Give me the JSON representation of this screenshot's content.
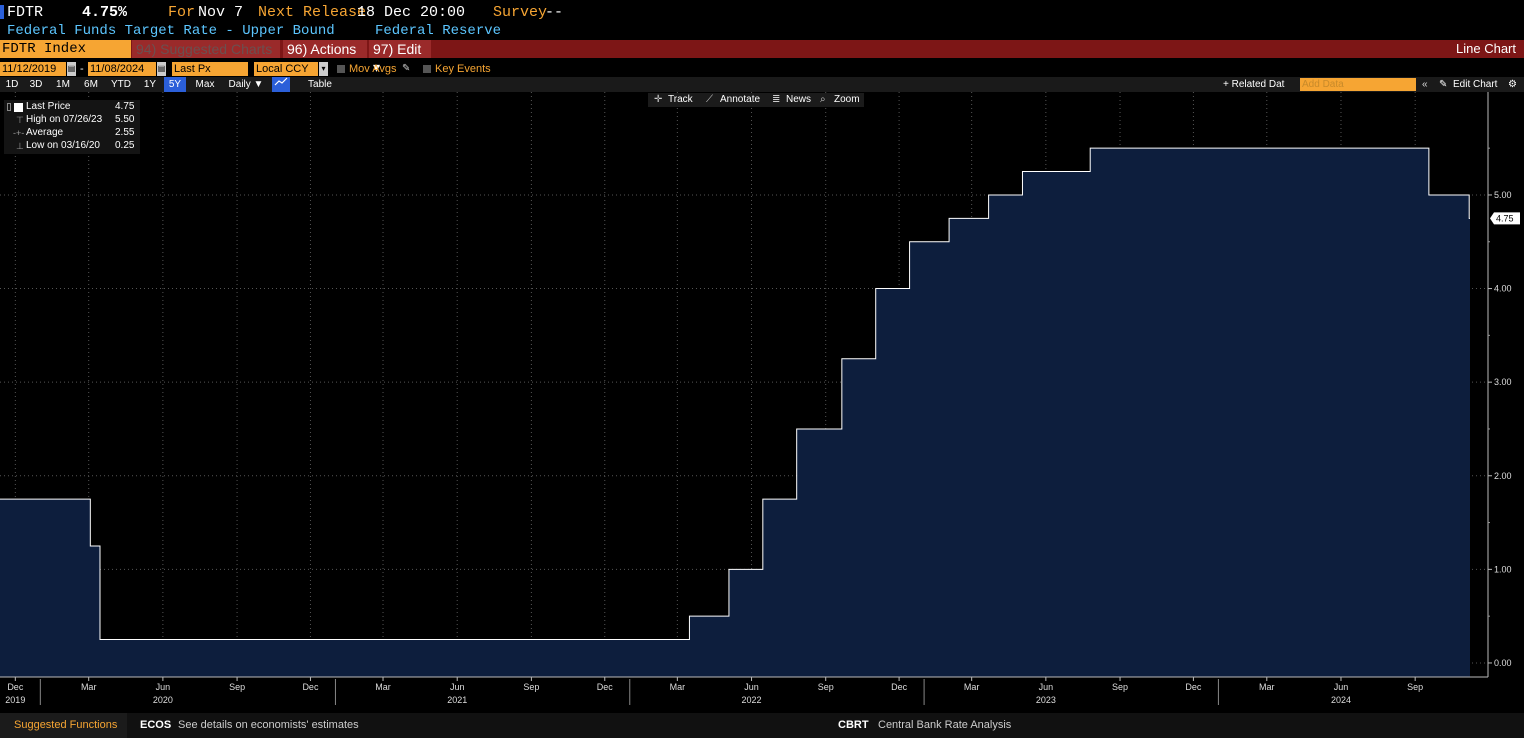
{
  "header": {
    "ticker": "FDTR",
    "value": "4.75%",
    "for_label": "For",
    "for_date": "Nov 7",
    "next_release_label": "Next Release",
    "next_release": "18 Dec 20:00",
    "survey_label": "Survey",
    "survey_value": "--",
    "name": "Federal Funds Target Rate - Upper Bound",
    "source": "Federal Reserve"
  },
  "toolbar": {
    "index": "FDTR Index",
    "suggested": "94) Suggested Charts",
    "actions": "96) Actions",
    "edit": "97) Edit",
    "chart_type": "Line Chart",
    "dropdown_glyph": "▾"
  },
  "controls": {
    "start_date": "11/12/2019",
    "sep": "-",
    "end_date": "11/08/2024",
    "field": "Last Px",
    "currency": "Local CCY",
    "mov_avgs": "Mov Avgs",
    "key_events": "Key Events"
  },
  "range": {
    "buttons": [
      "1D",
      "3D",
      "1M",
      "6M",
      "YTD",
      "1Y",
      "5Y",
      "Max"
    ],
    "selected": "5Y",
    "period": "Daily",
    "table": "Table",
    "related": "+ Related Dat",
    "add_data": "Add Data",
    "edit_chart": "Edit Chart"
  },
  "chart_tools": {
    "track": "Track",
    "annotate": "Annotate",
    "news": "News",
    "zoom": "Zoom"
  },
  "legend": {
    "last_label": "Last Price",
    "last_value": "4.75",
    "high_label": "High on 07/26/23",
    "high_value": "5.50",
    "avg_label": "Average",
    "avg_value": "2.55",
    "low_label": "Low on 03/16/20",
    "low_value": "0.25"
  },
  "footer": {
    "suggested": "Suggested Functions",
    "ecos_code": "ECOS",
    "ecos_desc": "See details on economists' estimates",
    "cbrt_code": "CBRT",
    "cbrt_desc": "Central Bank Rate Analysis"
  },
  "colors": {
    "accent_orange": "#f6a533",
    "title_blue": "#5cc6ff",
    "area_fill": "#0d1e3d",
    "line": "#ffffff",
    "red_bar": "#7d1616"
  },
  "chart_data": {
    "type": "area",
    "title": "",
    "xlabel": "",
    "ylabel": "",
    "x_range": [
      "2019-11-12",
      "2024-11-08"
    ],
    "ylim": [
      -0.15,
      6.1
    ],
    "y_ticks": [
      "0.00",
      "1.00",
      "2.00",
      "3.00",
      "4.00",
      "5.00"
    ],
    "last_value_label": "4.75",
    "step_points": [
      {
        "x": "2019-11-12",
        "y": 1.75
      },
      {
        "x": "2020-03-03",
        "y": 1.25
      },
      {
        "x": "2020-03-15",
        "y": 0.25
      },
      {
        "x": "2022-03-16",
        "y": 0.5
      },
      {
        "x": "2022-05-04",
        "y": 1.0
      },
      {
        "x": "2022-06-15",
        "y": 1.75
      },
      {
        "x": "2022-07-27",
        "y": 2.5
      },
      {
        "x": "2022-09-21",
        "y": 3.25
      },
      {
        "x": "2022-11-02",
        "y": 4.0
      },
      {
        "x": "2022-12-14",
        "y": 4.5
      },
      {
        "x": "2023-02-01",
        "y": 4.75
      },
      {
        "x": "2023-03-22",
        "y": 5.0
      },
      {
        "x": "2023-05-03",
        "y": 5.25
      },
      {
        "x": "2023-07-26",
        "y": 5.5
      },
      {
        "x": "2024-09-18",
        "y": 5.0
      },
      {
        "x": "2024-11-07",
        "y": 4.75
      },
      {
        "x": "2024-11-08",
        "y": 4.75
      }
    ],
    "x_month_ticks": [
      {
        "date": "2019-12-01",
        "label": "Dec"
      },
      {
        "date": "2020-03-01",
        "label": "Mar"
      },
      {
        "date": "2020-06-01",
        "label": "Jun"
      },
      {
        "date": "2020-09-01",
        "label": "Sep"
      },
      {
        "date": "2020-12-01",
        "label": "Dec"
      },
      {
        "date": "2021-03-01",
        "label": "Mar"
      },
      {
        "date": "2021-06-01",
        "label": "Jun"
      },
      {
        "date": "2021-09-01",
        "label": "Sep"
      },
      {
        "date": "2021-12-01",
        "label": "Dec"
      },
      {
        "date": "2022-03-01",
        "label": "Mar"
      },
      {
        "date": "2022-06-01",
        "label": "Jun"
      },
      {
        "date": "2022-09-01",
        "label": "Sep"
      },
      {
        "date": "2022-12-01",
        "label": "Dec"
      },
      {
        "date": "2023-03-01",
        "label": "Mar"
      },
      {
        "date": "2023-06-01",
        "label": "Jun"
      },
      {
        "date": "2023-09-01",
        "label": "Sep"
      },
      {
        "date": "2023-12-01",
        "label": "Dec"
      },
      {
        "date": "2024-03-01",
        "label": "Mar"
      },
      {
        "date": "2024-06-01",
        "label": "Jun"
      },
      {
        "date": "2024-09-01",
        "label": "Sep"
      }
    ],
    "x_year_labels": [
      {
        "date": "2019-12-01",
        "label": "2019"
      },
      {
        "date": "2020-06-01",
        "label": "2020"
      },
      {
        "date": "2021-06-01",
        "label": "2021"
      },
      {
        "date": "2022-06-01",
        "label": "2022"
      },
      {
        "date": "2023-06-01",
        "label": "2023"
      },
      {
        "date": "2024-06-01",
        "label": "2024"
      }
    ],
    "year_separators": [
      "2020-01-01",
      "2021-01-01",
      "2022-01-01",
      "2023-01-01",
      "2024-01-01"
    ],
    "grid": true
  }
}
